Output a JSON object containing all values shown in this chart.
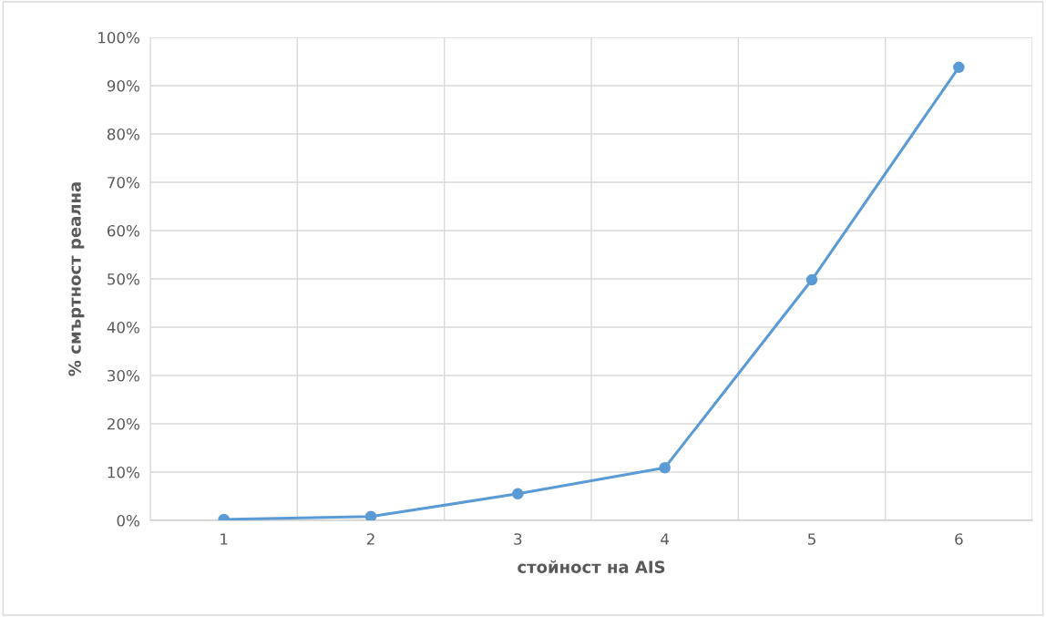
{
  "chart_data": {
    "type": "line",
    "xlabel": "стойност на AIS",
    "ylabel": "% смъртност реална",
    "categories": [
      "1",
      "2",
      "3",
      "4",
      "5",
      "6"
    ],
    "series": [
      {
        "color": "#5b9bd5",
        "values": [
          0.2,
          0.8,
          5.5,
          10.9,
          49.8,
          93.8
        ]
      }
    ],
    "ylim": [
      0,
      100
    ],
    "yticks": [
      {
        "value": 0,
        "label": "0%"
      },
      {
        "value": 10,
        "label": "10%"
      },
      {
        "value": 20,
        "label": "20%"
      },
      {
        "value": 30,
        "label": "30%"
      },
      {
        "value": 40,
        "label": "40%"
      },
      {
        "value": 50,
        "label": "50%"
      },
      {
        "value": 60,
        "label": "60%"
      },
      {
        "value": 70,
        "label": "70%"
      },
      {
        "value": 80,
        "label": "80%"
      },
      {
        "value": 90,
        "label": "90%"
      },
      {
        "value": 100,
        "label": "100%"
      }
    ],
    "grid": true,
    "marker": "circle",
    "line_style": "solid"
  }
}
